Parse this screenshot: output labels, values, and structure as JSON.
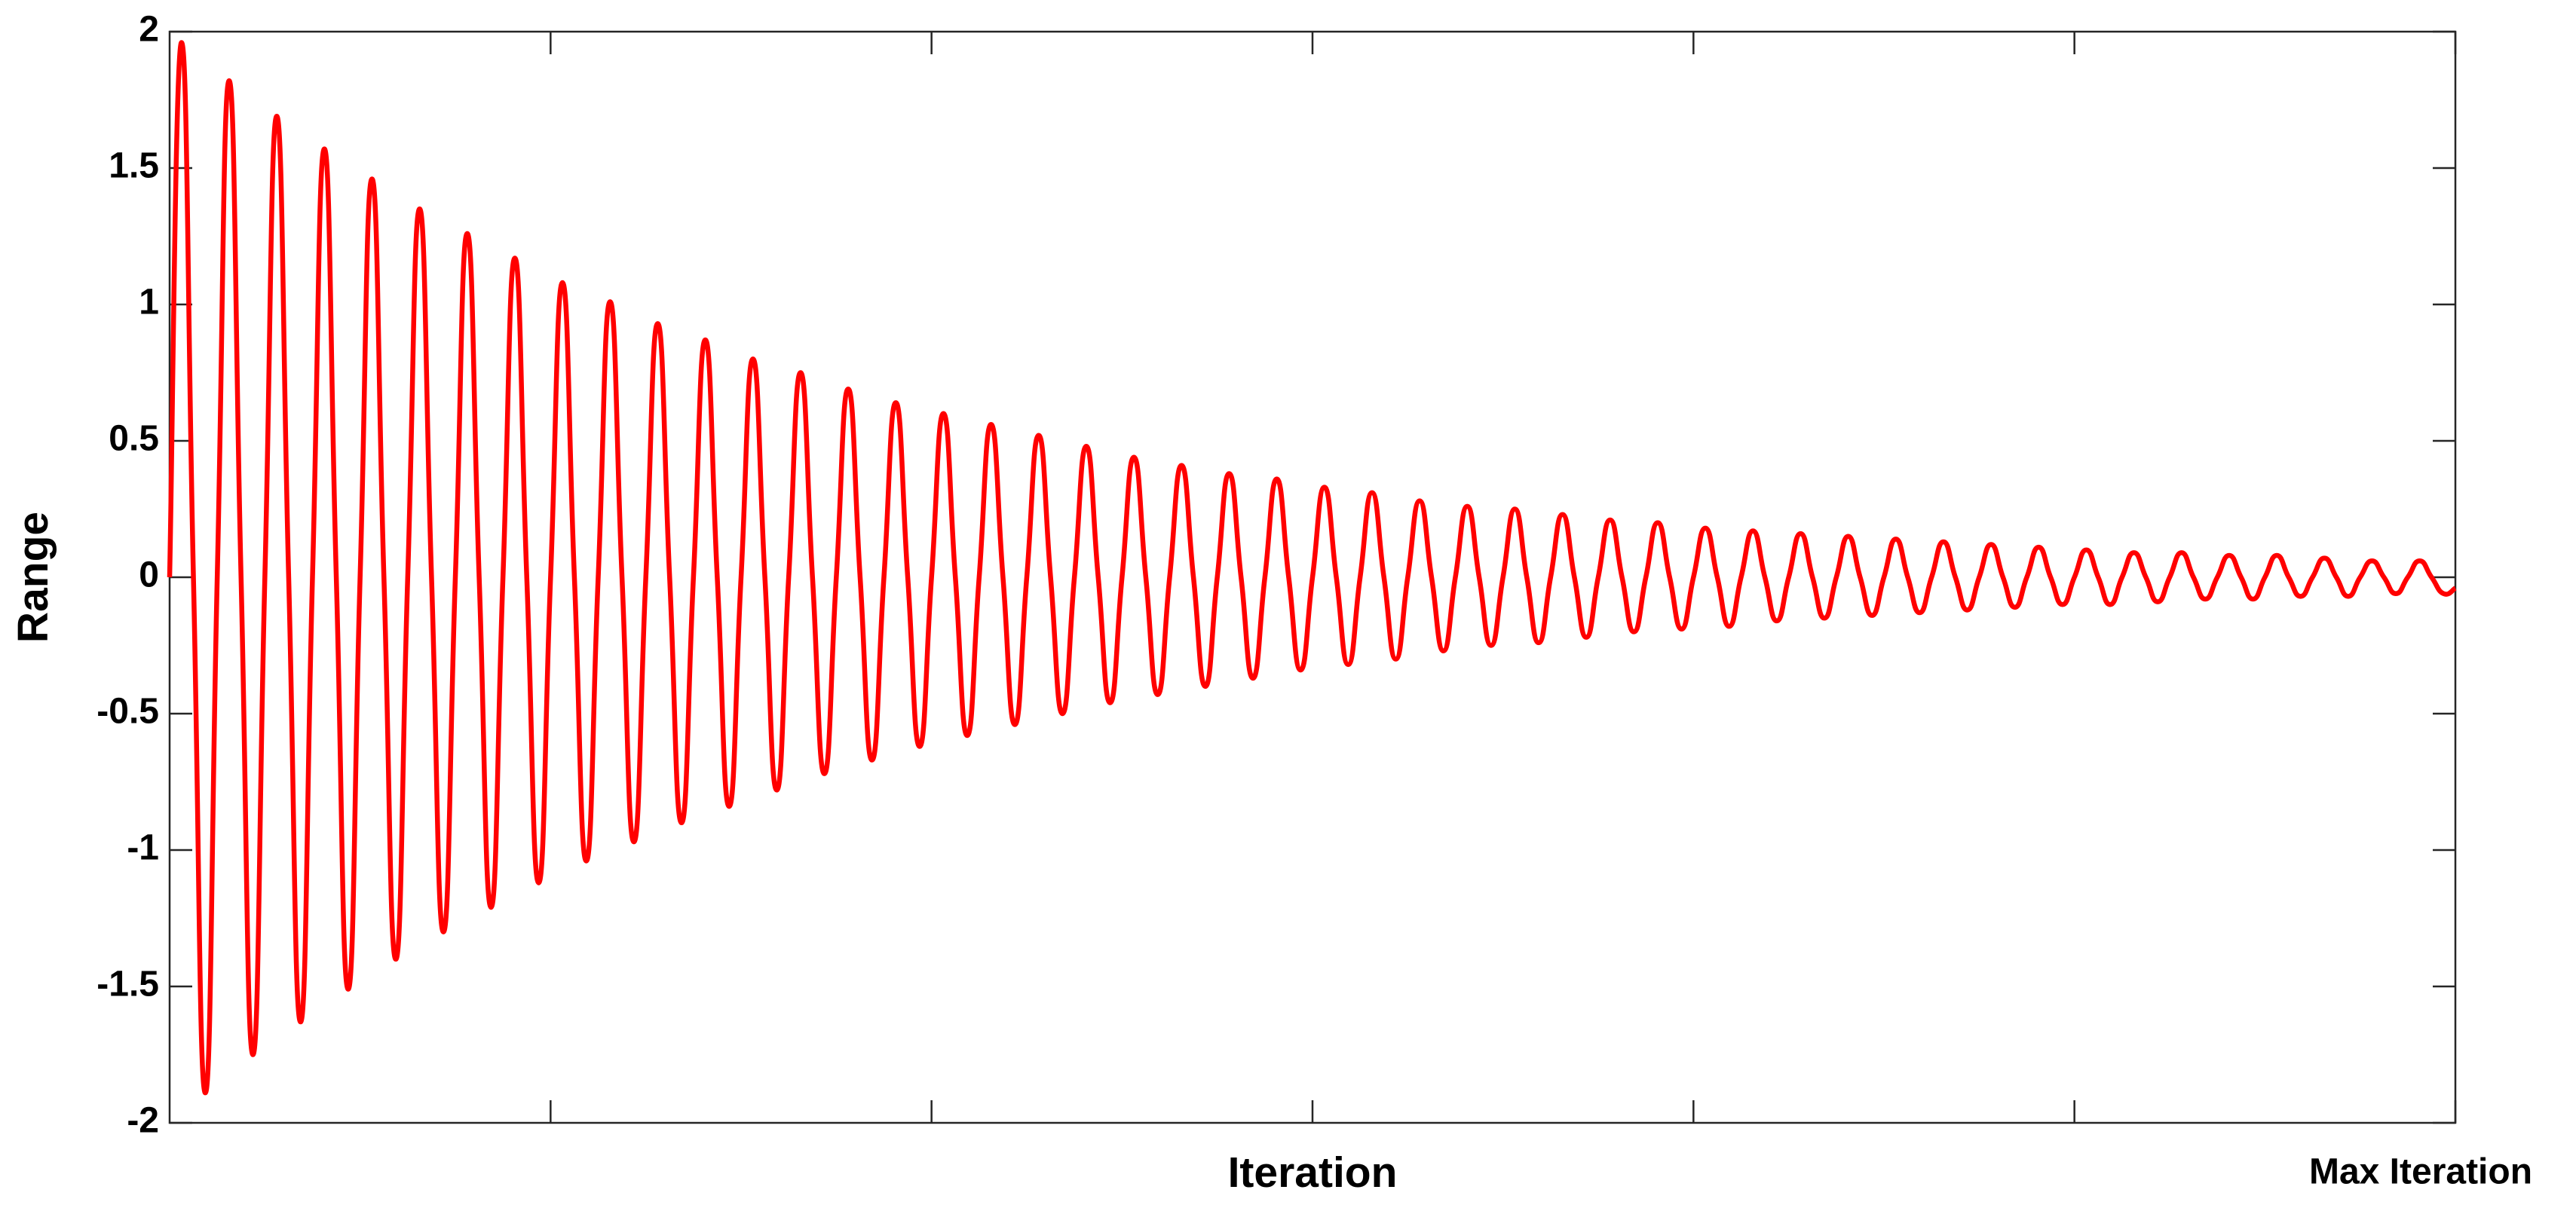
{
  "chart_data": {
    "type": "line",
    "x_label": "Iteration",
    "y_label": "Range",
    "x": [
      0,
      1,
      2,
      3,
      4,
      5,
      6,
      7,
      8,
      9,
      10,
      11,
      12,
      13,
      14,
      15,
      16,
      17,
      18,
      19,
      20,
      21,
      22,
      23,
      24,
      25,
      26,
      27,
      28,
      29,
      30,
      31,
      32,
      33,
      34,
      35,
      36,
      37,
      38,
      39,
      40,
      41,
      42,
      43,
      44,
      45,
      46,
      47,
      48,
      49,
      50,
      51,
      52,
      53,
      54,
      55,
      56,
      57,
      58,
      59,
      60,
      61,
      62,
      63,
      64,
      65,
      66,
      67,
      68,
      69,
      70,
      71,
      72,
      73,
      74,
      75,
      76,
      77,
      78,
      79,
      80,
      81,
      82,
      83,
      84,
      85,
      86,
      87,
      88,
      89,
      90,
      91,
      92,
      93,
      94,
      95,
      96,
      97,
      98,
      99,
      100,
      101,
      102,
      103,
      104,
      105,
      106,
      107,
      108,
      109,
      110,
      111,
      112,
      113,
      114,
      115,
      116,
      117,
      118,
      119,
      120,
      121,
      122,
      123,
      124,
      125,
      126,
      127,
      128,
      129,
      130,
      131,
      132,
      133,
      134,
      135,
      136,
      137,
      138,
      139,
      140,
      141,
      142,
      143,
      144,
      145,
      146,
      147,
      148,
      149,
      150,
      151,
      152,
      153,
      154,
      155,
      156,
      157,
      158,
      159,
      160,
      161,
      162,
      163,
      164,
      165,
      166,
      167,
      168,
      169,
      170,
      171,
      172,
      173,
      174,
      175,
      176,
      177,
      178,
      179,
      180,
      181,
      182,
      183,
      184,
      185,
      186,
      187,
      188,
      189,
      190,
      191,
      192
    ],
    "values": [
      0,
      1.96,
      0,
      -1.89,
      0,
      1.82,
      0,
      -1.75,
      0,
      1.69,
      0,
      -1.63,
      0,
      1.57,
      0,
      -1.51,
      0,
      1.46,
      0,
      -1.4,
      0,
      1.35,
      0,
      -1.3,
      0,
      1.26,
      0,
      -1.21,
      0,
      1.17,
      0,
      -1.12,
      0,
      1.08,
      0,
      -1.04,
      0,
      1.01,
      0,
      -0.97,
      0,
      0.93,
      0,
      -0.9,
      0,
      0.87,
      0,
      -0.84,
      0,
      0.8,
      0,
      -0.78,
      0,
      0.75,
      0,
      -0.72,
      0,
      0.69,
      0,
      -0.67,
      0,
      0.64,
      0,
      -0.62,
      0,
      0.6,
      0,
      -0.58,
      0,
      0.56,
      0,
      -0.54,
      0,
      0.52,
      0,
      -0.5,
      0,
      0.48,
      0,
      -0.46,
      0,
      0.44,
      0,
      -0.43,
      0,
      0.41,
      0,
      -0.4,
      0,
      0.38,
      0,
      -0.37,
      0,
      0.36,
      0,
      -0.34,
      0,
      0.33,
      0,
      -0.32,
      0,
      0.31,
      0,
      -0.3,
      0,
      0.28,
      0,
      -0.27,
      0,
      0.26,
      0,
      -0.25,
      0,
      0.25,
      0,
      -0.24,
      0,
      0.23,
      0,
      -0.22,
      0,
      0.21,
      0,
      -0.2,
      0,
      0.2,
      0,
      -0.19,
      0,
      0.18,
      0,
      -0.18,
      0,
      0.17,
      0,
      -0.16,
      0,
      0.16,
      0,
      -0.15,
      0,
      0.15,
      0,
      -0.14,
      0,
      0.14,
      0,
      -0.13,
      0,
      0.13,
      0,
      -0.12,
      0,
      0.12,
      0,
      -0.11,
      0,
      0.11,
      0,
      -0.1,
      0,
      0.1,
      0,
      -0.1,
      0,
      0.09,
      0,
      -0.09,
      0,
      0.09,
      0,
      -0.08,
      0,
      0.08,
      0,
      -0.08,
      0,
      0.08,
      0,
      -0.07,
      0,
      0.07,
      0,
      -0.07,
      0,
      0.06,
      0,
      -0.06,
      0,
      0.06,
      0,
      -0.06,
      -0.04
    ],
    "color": "#ff0000",
    "xlim": [
      0,
      192
    ],
    "ylim": [
      -2,
      2
    ],
    "xticks": [
      {
        "value": 32,
        "label": null
      },
      {
        "value": 64,
        "label": null
      },
      {
        "value": 96,
        "label": null
      },
      {
        "value": 128,
        "label": null
      },
      {
        "value": 160,
        "label": null
      },
      {
        "value": 192,
        "label": "Max Iteration"
      }
    ],
    "yticks": [
      -2,
      -1.5,
      -1,
      -0.5,
      0,
      0.5,
      1,
      1.5,
      2
    ],
    "grid": false
  }
}
